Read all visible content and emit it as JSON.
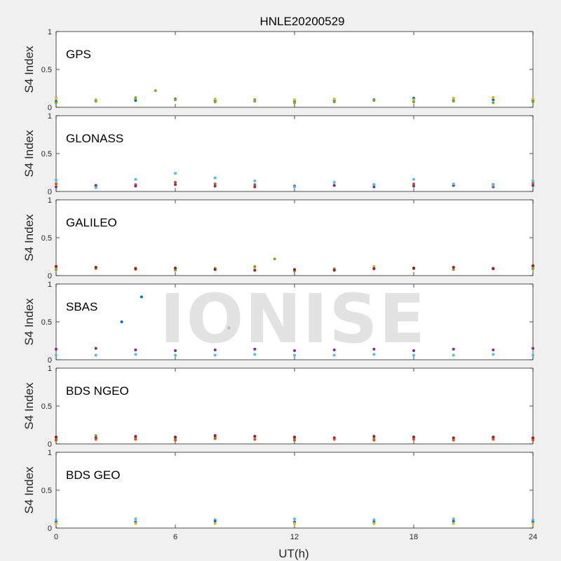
{
  "figure": {
    "title": "HNLE20200529",
    "xlabel": "UT(h)",
    "watermark": "IONISE",
    "background": "#f0f0f0",
    "axes_color": "#262626"
  },
  "chart_data": {
    "type": "scatter",
    "title": "HNLE20200529",
    "xlabel": "UT(h)",
    "ylabel": "S4 Index",
    "xlim": [
      0,
      24
    ],
    "ylim": [
      0,
      1
    ],
    "xticks": [
      0,
      6,
      12,
      18,
      24
    ],
    "yticks": [
      0,
      0.5,
      1
    ],
    "xtick_labels": [
      "0",
      "6",
      "12",
      "18",
      "24"
    ],
    "ytick_labels": [
      "0",
      "0.5",
      "1"
    ],
    "grid": false,
    "colors": [
      "#0072BD",
      "#D95319",
      "#EDB120",
      "#7E2F8E",
      "#77AC30",
      "#4DBEEE",
      "#A2142F"
    ],
    "panels": [
      {
        "label": "GPS",
        "series": [
          {
            "x": [
              0,
              2,
              4,
              6,
              8,
              10,
              12,
              14,
              16,
              18,
              20,
              22,
              24
            ],
            "y": [
              0.08,
              0.1,
              0.09,
              0.11,
              0.09,
              0.1,
              0.08,
              0.09,
              0.1,
              0.12,
              0.09,
              0.1,
              0.09
            ]
          },
          {
            "x": [
              0,
              2,
              4,
              6,
              8,
              10,
              12,
              14,
              16,
              18,
              20,
              22,
              24
            ],
            "y": [
              0.12,
              0.1,
              0.13,
              0.1,
              0.11,
              0.09,
              0.1,
              0.11,
              0.09,
              0.1,
              0.12,
              0.13,
              0.11
            ]
          },
          {
            "x": [
              0,
              2,
              4,
              5,
              6,
              8,
              10,
              12,
              14,
              16,
              18,
              20,
              22,
              24
            ],
            "y": [
              0.06,
              0.08,
              0.12,
              0.22,
              0.1,
              0.07,
              0.08,
              0.06,
              0.07,
              0.09,
              0.07,
              0.08,
              0.06,
              0.07
            ]
          }
        ]
      },
      {
        "label": "GLONASS",
        "series": [
          {
            "x": [
              0,
              2,
              4,
              6,
              8,
              10,
              12,
              14,
              16,
              18,
              20,
              22,
              24
            ],
            "y": [
              0.1,
              0.07,
              0.09,
              0.12,
              0.1,
              0.09,
              0.07,
              0.08,
              0.09,
              0.1,
              0.08,
              0.09,
              0.11
            ]
          },
          {
            "x": [
              0,
              2,
              4,
              6,
              8,
              10,
              12,
              14,
              16,
              18,
              20,
              22,
              24
            ],
            "y": [
              0.06,
              0.08,
              0.07,
              0.09,
              0.07,
              0.06,
              0.07,
              0.08,
              0.06,
              0.07,
              0.08,
              0.06,
              0.08
            ]
          },
          {
            "x": [
              0,
              2,
              4,
              6,
              8,
              10,
              12,
              14,
              16,
              18,
              20,
              22,
              24
            ],
            "y": [
              0.15,
              0.05,
              0.16,
              0.24,
              0.18,
              0.14,
              0.06,
              0.12,
              0.09,
              0.16,
              0.1,
              0.08,
              0.14
            ]
          }
        ]
      },
      {
        "label": "GALILEO",
        "series": [
          {
            "x": [
              0,
              2,
              4,
              6,
              8,
              10,
              12,
              14,
              16,
              18,
              20,
              22,
              24
            ],
            "y": [
              0.09,
              0.1,
              0.08,
              0.09,
              0.1,
              0.11,
              0.07,
              0.08,
              0.12,
              0.1,
              0.08,
              0.09,
              0.1
            ]
          },
          {
            "x": [
              0,
              2,
              4,
              6,
              8,
              10,
              11,
              12,
              14,
              16,
              18,
              20,
              22,
              24
            ],
            "y": [
              0.08,
              0.09,
              0.1,
              0.07,
              0.09,
              0.12,
              0.22,
              0.06,
              0.09,
              0.1,
              0.09,
              0.08,
              0.1,
              0.09
            ]
          },
          {
            "x": [
              0,
              2,
              4,
              6,
              8,
              10,
              12,
              14,
              16,
              18,
              20,
              22,
              24
            ],
            "y": [
              0.12,
              0.11,
              0.09,
              0.1,
              0.08,
              0.07,
              0.08,
              0.07,
              0.09,
              0.1,
              0.11,
              0.09,
              0.13
            ]
          }
        ]
      },
      {
        "label": "SBAS",
        "series": [
          {
            "x": [
              0,
              2,
              4,
              6,
              8,
              10,
              12,
              14,
              16,
              18,
              20,
              22,
              24
            ],
            "y": [
              0.14,
              0.15,
              0.13,
              0.12,
              0.13,
              0.14,
              0.12,
              0.13,
              0.14,
              0.12,
              0.14,
              0.13,
              0.15
            ]
          },
          {
            "x": [
              0,
              2,
              4,
              6,
              8,
              10,
              12,
              14,
              16,
              18,
              20,
              22,
              24
            ],
            "y": [
              0.06,
              0.06,
              0.07,
              0.06,
              0.06,
              0.07,
              0.06,
              0.06,
              0.07,
              0.06,
              0.06,
              0.07,
              0.06
            ]
          },
          {
            "x": [
              3.3,
              4.3,
              8.7
            ],
            "y": [
              0.5,
              0.83,
              0.42
            ]
          }
        ]
      },
      {
        "label": "BDS NGEO",
        "series": [
          {
            "x": [
              0,
              2,
              4,
              6,
              8,
              10,
              12,
              14,
              16,
              18,
              20,
              22,
              24
            ],
            "y": [
              0.07,
              0.11,
              0.08,
              0.07,
              0.09,
              0.1,
              0.07,
              0.08,
              0.07,
              0.09,
              0.06,
              0.08,
              0.07
            ]
          },
          {
            "x": [
              0,
              2,
              4,
              6,
              8,
              10,
              12,
              14,
              16,
              18,
              20,
              22,
              24
            ],
            "y": [
              0.09,
              0.08,
              0.1,
              0.09,
              0.11,
              0.1,
              0.09,
              0.08,
              0.1,
              0.09,
              0.08,
              0.09,
              0.08
            ]
          },
          {
            "x": [
              0,
              2,
              4,
              6,
              8,
              10,
              12,
              14,
              16,
              18,
              20,
              22,
              24
            ],
            "y": [
              0.05,
              0.06,
              0.06,
              0.05,
              0.07,
              0.06,
              0.05,
              0.06,
              0.05,
              0.06,
              0.05,
              0.06,
              0.05
            ]
          }
        ]
      },
      {
        "label": "BDS GEO",
        "series": [
          {
            "x": [
              0,
              4,
              8,
              12,
              16,
              20,
              24
            ],
            "y": [
              0.11,
              0.12,
              0.11,
              0.12,
              0.11,
              0.12,
              0.11
            ]
          },
          {
            "x": [
              0,
              4,
              8,
              12,
              16,
              20,
              24
            ],
            "y": [
              0.08,
              0.08,
              0.09,
              0.08,
              0.08,
              0.09,
              0.08
            ]
          },
          {
            "x": [
              0,
              4,
              8,
              12,
              16,
              20,
              24
            ],
            "y": [
              0.06,
              0.06,
              0.06,
              0.06,
              0.06,
              0.06,
              0.06
            ]
          }
        ]
      }
    ]
  }
}
